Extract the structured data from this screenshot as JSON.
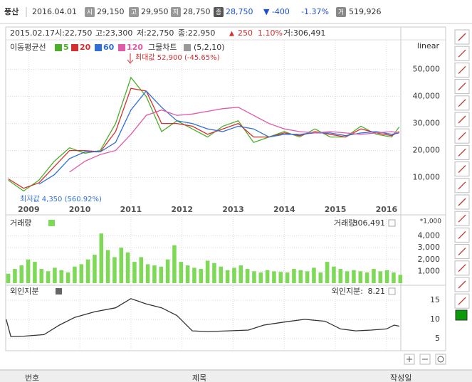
{
  "header": {
    "name": "풍산",
    "date": "2016.04.01",
    "quotes": [
      {
        "icon": "시",
        "value": "29,150"
      },
      {
        "icon": "고",
        "value": "29,950"
      },
      {
        "icon": "저",
        "value": "28,750"
      },
      {
        "icon": "종",
        "value": "28,750"
      }
    ],
    "change": "▼ -400",
    "change_pct": "-1.37%",
    "volume_icon": "거",
    "volume": "519,926"
  },
  "cursor_info": {
    "date": "2015.02.17",
    "open": "시:22,750",
    "high": "고:23,300",
    "low": "저:22,750",
    "close": "종:22,950",
    "arrow": "▲",
    "change": "250",
    "change_pct": "1.10%",
    "volume": "거:306,491"
  },
  "chart_data": [
    {
      "type": "line",
      "legend_title": "이동평균선",
      "net_chart": "그물차트",
      "net_params": "(5,2,10)",
      "scale_label": "linear",
      "annotations": [
        "최대값 52,900 (-45.65%)",
        "최저값 4,350 (560.92%)"
      ],
      "x": [
        2008.6,
        2008.9,
        2009.2,
        2009.5,
        2009.8,
        2010.1,
        2010.4,
        2010.7,
        2011.0,
        2011.3,
        2011.6,
        2011.9,
        2012.2,
        2012.5,
        2012.8,
        2013.1,
        2013.4,
        2013.7,
        2014.0,
        2014.3,
        2014.6,
        2014.9,
        2015.2,
        2015.5,
        2015.8,
        2016.1,
        2016.25
      ],
      "series": [
        {
          "name": "5",
          "color": "#4caf2a",
          "values": [
            9000,
            5000,
            9000,
            16000,
            21000,
            19000,
            20000,
            30000,
            47000,
            40000,
            27000,
            31000,
            28000,
            25000,
            29000,
            31000,
            23000,
            25000,
            27000,
            25000,
            28000,
            25000,
            25000,
            29000,
            26000,
            25000,
            28700
          ]
        },
        {
          "name": "20",
          "color": "#d32f2f",
          "values": [
            9500,
            6000,
            8000,
            14000,
            20000,
            20000,
            19500,
            27000,
            43000,
            42000,
            30000,
            30000,
            29000,
            26000,
            28000,
            30000,
            25000,
            25000,
            26500,
            25500,
            27000,
            26000,
            25000,
            28000,
            26500,
            25500,
            27000
          ]
        },
        {
          "name": "60",
          "color": "#2f6fd6",
          "values": [
            null,
            null,
            7500,
            11000,
            17000,
            19500,
            19500,
            23000,
            35000,
            42000,
            36000,
            31000,
            30000,
            28000,
            27000,
            29000,
            28000,
            25000,
            26000,
            26000,
            26500,
            26500,
            25500,
            26500,
            27000,
            26000,
            26500
          ]
        },
        {
          "name": "120",
          "color": "#e05aa8",
          "values": [
            null,
            null,
            null,
            null,
            12000,
            16000,
            18500,
            20000,
            26000,
            33000,
            35000,
            33000,
            33500,
            34500,
            35500,
            36000,
            33000,
            30000,
            28000,
            27000,
            26500,
            27000,
            26500,
            26000,
            26500,
            27000,
            26500
          ]
        }
      ],
      "xlim": [
        2008.55,
        2016.28
      ],
      "xticks": [
        2009,
        2010,
        2011,
        2012,
        2013,
        2014,
        2015,
        2016
      ],
      "ylim": [
        0,
        60700
      ],
      "yticks": [
        {
          "value": 10000,
          "label": "10,000"
        },
        {
          "value": 20000,
          "label": "20,000"
        },
        {
          "value": 30000,
          "label": "30,000"
        },
        {
          "value": 40000,
          "label": "40,000"
        },
        {
          "value": 50000,
          "label": "50,000"
        }
      ],
      "grid": true
    },
    {
      "type": "bar",
      "title": "거래량",
      "readout": "거래량:",
      "readout_value": "306,491",
      "unit_label": "*1,000",
      "color": "#7ed957",
      "x": [
        2008.6,
        2008.73,
        2008.86,
        2008.99,
        2009.12,
        2009.25,
        2009.38,
        2009.51,
        2009.64,
        2009.77,
        2009.9,
        2010.03,
        2010.16,
        2010.29,
        2010.42,
        2010.55,
        2010.68,
        2010.81,
        2010.94,
        2011.07,
        2011.2,
        2011.33,
        2011.46,
        2011.59,
        2011.72,
        2011.85,
        2011.98,
        2012.11,
        2012.24,
        2012.37,
        2012.5,
        2012.63,
        2012.76,
        2012.89,
        2013.02,
        2013.15,
        2013.28,
        2013.41,
        2013.54,
        2013.67,
        2013.8,
        2013.93,
        2014.06,
        2014.19,
        2014.32,
        2014.45,
        2014.58,
        2014.71,
        2014.84,
        2014.97,
        2015.1,
        2015.23,
        2015.36,
        2015.49,
        2015.62,
        2015.75,
        2015.88,
        2016.01,
        2016.14,
        2016.27
      ],
      "values": [
        800,
        1200,
        1500,
        2000,
        1800,
        1200,
        1000,
        1300,
        1100,
        900,
        1400,
        1600,
        2000,
        2400,
        4200,
        2800,
        2200,
        3000,
        2600,
        1800,
        2200,
        1600,
        1500,
        1400,
        2000,
        3200,
        1800,
        1500,
        1300,
        1200,
        1900,
        1700,
        1400,
        1100,
        1300,
        1500,
        1200,
        1000,
        900,
        1100,
        1000,
        950,
        900,
        1200,
        1100,
        1000,
        1300,
        900,
        1800,
        1400,
        1200,
        1000,
        1100,
        1000,
        900,
        1200,
        1000,
        1100,
        900,
        700
      ],
      "xlim": [
        2008.55,
        2016.28
      ],
      "ylim": [
        0,
        5600
      ],
      "yticks": [
        {
          "value": 1000,
          "label": "1,000"
        },
        {
          "value": 2000,
          "label": "2,000"
        },
        {
          "value": 3000,
          "label": "3,000"
        },
        {
          "value": 4000,
          "label": "4,000"
        }
      ],
      "grid": true
    },
    {
      "type": "line",
      "title": "외인지분",
      "readout": "외인지분:",
      "readout_value": "8.21",
      "color": "#333333",
      "x": [
        2008.56,
        2008.65,
        2008.9,
        2009.3,
        2009.6,
        2009.9,
        2010.3,
        2010.7,
        2011.0,
        2011.3,
        2011.6,
        2011.9,
        2012.2,
        2012.5,
        2012.9,
        2013.3,
        2013.6,
        2014.0,
        2014.4,
        2014.8,
        2015.1,
        2015.4,
        2015.7,
        2016.0,
        2016.15,
        2016.25
      ],
      "values": [
        10,
        5.5,
        5.6,
        6,
        8.5,
        10.5,
        12,
        13,
        15.4,
        14,
        13,
        11,
        7,
        6.8,
        7,
        7.2,
        8.5,
        9.3,
        10,
        9.5,
        7.5,
        7,
        7.2,
        7.5,
        8.5,
        8.21
      ],
      "xlim": [
        2008.55,
        2016.28
      ],
      "ylim": [
        2,
        18.7
      ],
      "yticks": [
        5,
        10,
        15
      ],
      "grid": true
    }
  ],
  "footer": {
    "columns": [
      "번호",
      "제목",
      "작성일"
    ]
  }
}
